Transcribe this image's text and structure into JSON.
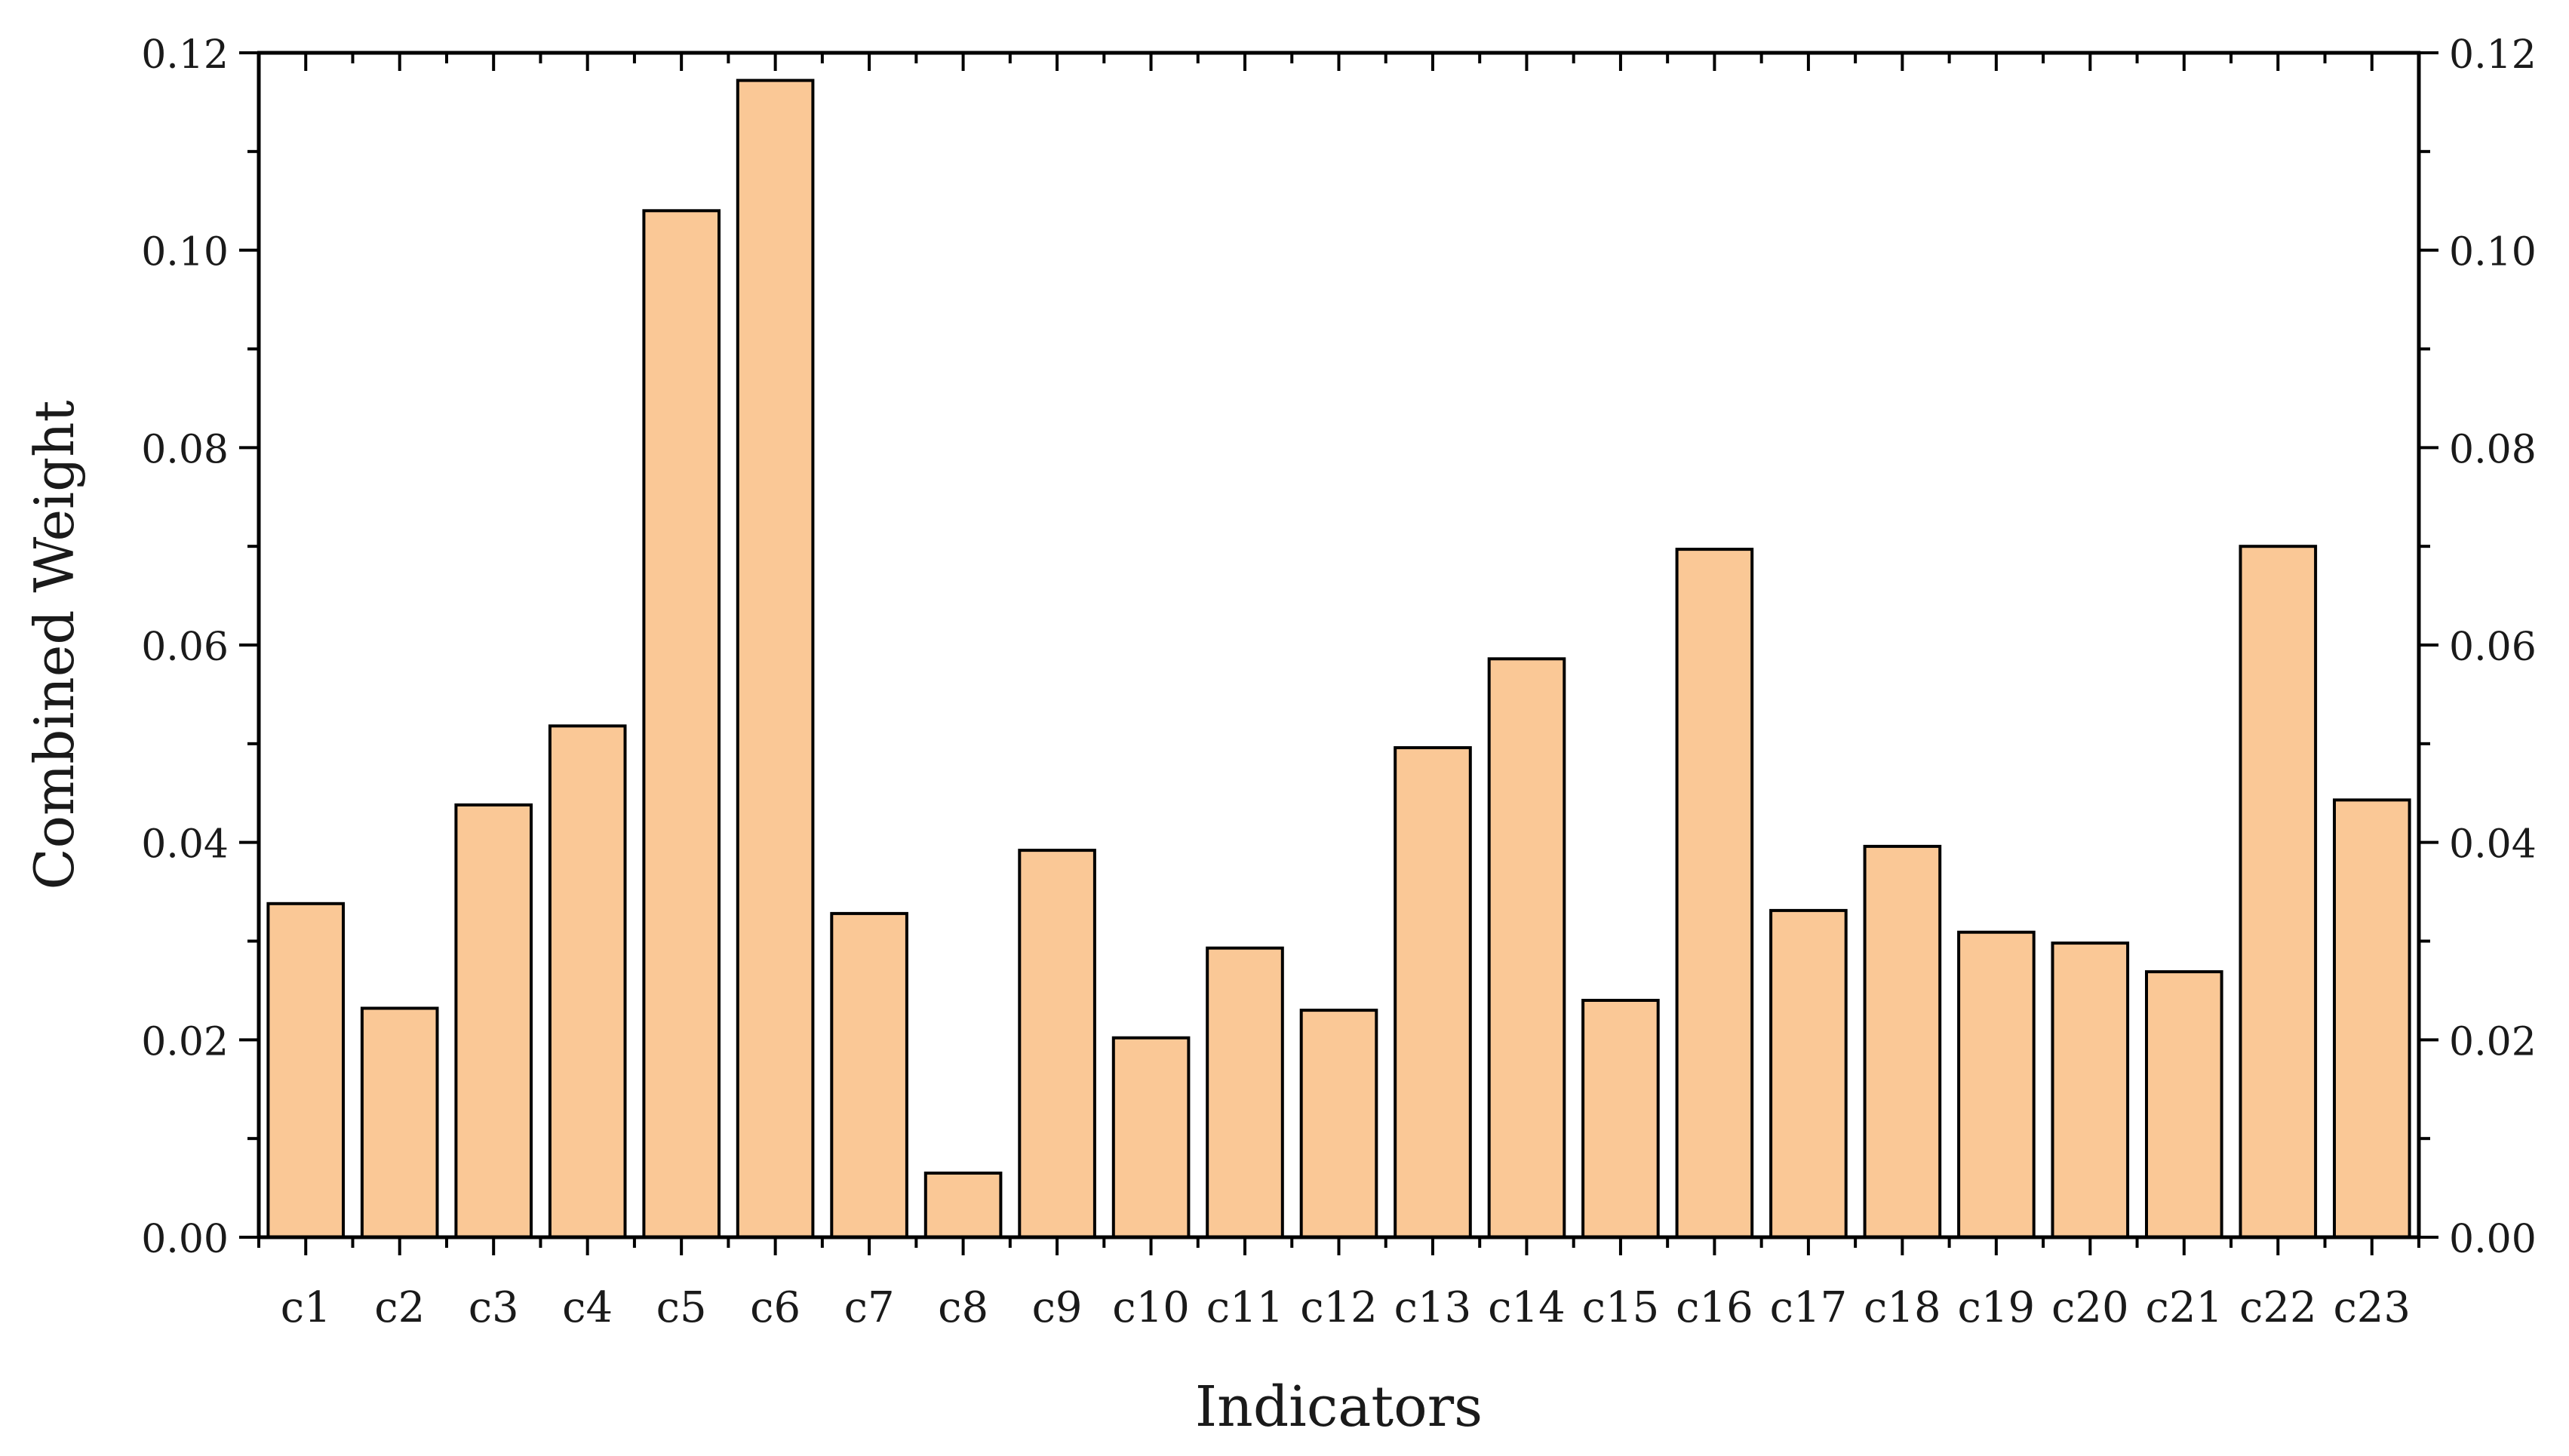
{
  "colors": {
    "bar_fill": "#FAC896",
    "bar_stroke": "#000000",
    "axis": "#000000",
    "text": "#1a1a1a",
    "background": "#ffffff"
  },
  "chart_data": {
    "type": "bar",
    "title": "",
    "xlabel": "Indicators",
    "ylabel": "Combined Weight",
    "ylim": [
      0,
      0.12
    ],
    "y_ticks": [
      "0.00",
      "0.02",
      "0.04",
      "0.06",
      "0.08",
      "0.10",
      "0.12"
    ],
    "right_axis_mirrored": true,
    "grid": false,
    "legend": "none",
    "categories": [
      "c1",
      "c2",
      "c3",
      "c4",
      "c5",
      "c6",
      "c7",
      "c8",
      "c9",
      "c10",
      "c11",
      "c12",
      "c13",
      "c14",
      "c15",
      "c16",
      "c17",
      "c18",
      "c19",
      "c20",
      "c21",
      "c22",
      "c23"
    ],
    "values": [
      0.0338,
      0.0232,
      0.0438,
      0.0518,
      0.104,
      0.1172,
      0.0328,
      0.0065,
      0.0392,
      0.0202,
      0.0293,
      0.023,
      0.0496,
      0.0586,
      0.024,
      0.0697,
      0.0331,
      0.0396,
      0.0309,
      0.0298,
      0.0269,
      0.07,
      0.0443
    ]
  }
}
